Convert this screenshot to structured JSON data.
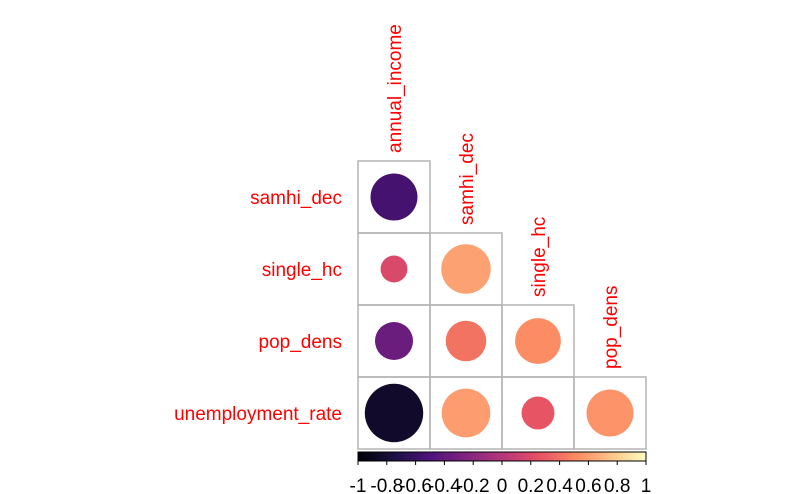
{
  "chart_data": {
    "type": "heatmap",
    "subtype": "correlation-lower-triangle-circles",
    "variables": [
      "annual_income",
      "samhi_dec",
      "single_hc",
      "pop_dens",
      "unemployment_rate"
    ],
    "row_labels": [
      "samhi_dec",
      "single_hc",
      "pop_dens",
      "unemployment_rate"
    ],
    "col_labels": [
      "annual_income",
      "samhi_dec",
      "single_hc",
      "pop_dens"
    ],
    "cells": [
      {
        "row": "samhi_dec",
        "col": "annual_income",
        "value": -0.55
      },
      {
        "row": "single_hc",
        "col": "annual_income",
        "value": 0.18
      },
      {
        "row": "single_hc",
        "col": "samhi_dec",
        "value": 0.61
      },
      {
        "row": "pop_dens",
        "col": "annual_income",
        "value": -0.36
      },
      {
        "row": "pop_dens",
        "col": "samhi_dec",
        "value": 0.41
      },
      {
        "row": "pop_dens",
        "col": "single_hc",
        "value": 0.52
      },
      {
        "row": "unemployment_rate",
        "col": "annual_income",
        "value": -0.85
      },
      {
        "row": "unemployment_rate",
        "col": "samhi_dec",
        "value": 0.59
      },
      {
        "row": "unemployment_rate",
        "col": "single_hc",
        "value": 0.27
      },
      {
        "row": "unemployment_rate",
        "col": "pop_dens",
        "value": 0.55
      }
    ],
    "color_scale": {
      "name": "magma",
      "range": [
        -1,
        1
      ],
      "ticks": [
        -1,
        -0.8,
        -0.6,
        -0.4,
        -0.2,
        0,
        0.2,
        0.4,
        0.6,
        0.8,
        1
      ],
      "tick_labels": [
        "-1",
        "-0.8",
        "-0.6",
        "-0.4",
        "-0.2",
        "0",
        "0.2",
        "0.4",
        "0.6",
        "0.8",
        "1"
      ],
      "stops": [
        "#000004",
        "#1c1044",
        "#4f127b",
        "#812581",
        "#b5367a",
        "#e55064",
        "#fb8761",
        "#fec287",
        "#fcfdbf"
      ]
    },
    "label_color": "#ff0000",
    "grid": true,
    "legend_position": "bottom"
  }
}
